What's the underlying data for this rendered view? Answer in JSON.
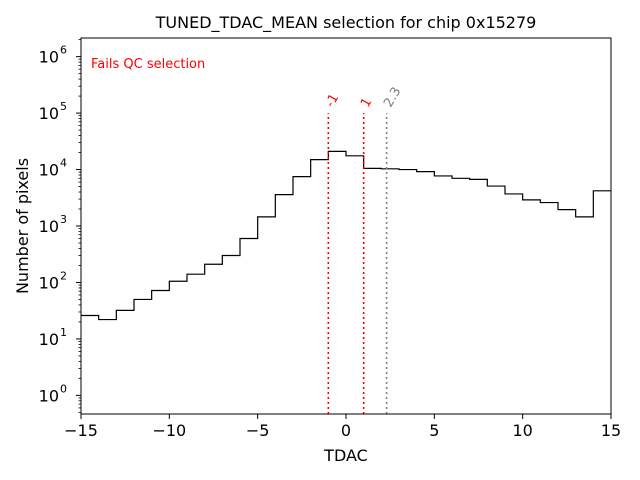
{
  "chart_data": {
    "type": "histogram",
    "title": "TUNED_TDAC_MEAN selection for chip 0x15279",
    "xlabel": "TDAC",
    "ylabel": "Number of pixels",
    "xlim": [
      -15,
      15
    ],
    "ylim_log10": [
      -0.33,
      6.33
    ],
    "yscale": "log",
    "x_ticks": [
      -15,
      -10,
      -5,
      0,
      5,
      10,
      15
    ],
    "x_tick_labels": [
      "−15",
      "−10",
      "−5",
      "0",
      "5",
      "10",
      "15"
    ],
    "y_ticks_exp": [
      0,
      1,
      2,
      3,
      4,
      5,
      6
    ],
    "y_tick_base": "10",
    "y_tick_exponents": [
      "0",
      "1",
      "2",
      "3",
      "4",
      "5",
      "6"
    ],
    "bin_edges": [
      -15,
      -14,
      -13,
      -12,
      -11,
      -10,
      -9,
      -8,
      -7,
      -6,
      -5,
      -4,
      -3,
      -2,
      -1,
      0,
      1,
      2,
      3,
      4,
      5,
      6,
      7,
      8,
      9,
      10,
      11,
      12,
      13,
      14,
      15
    ],
    "counts": [
      26,
      22,
      32,
      50,
      72,
      105,
      140,
      210,
      300,
      600,
      1450,
      3600,
      7500,
      15000,
      21000,
      17500,
      10500,
      10300,
      10000,
      9200,
      7700,
      7000,
      6700,
      5100,
      3700,
      2900,
      2600,
      1950,
      1450,
      4200
    ],
    "annotation": {
      "text": "Fails QC selection",
      "color": "#ff0000",
      "position": "top-left"
    },
    "vlines": [
      {
        "x": -1,
        "label": "-1",
        "color": "#ff0000",
        "y_top": 100000
      },
      {
        "x": 1,
        "label": "1",
        "color": "#ff0000",
        "y_top": 100000
      },
      {
        "x": 2.3,
        "label": "2.3",
        "color": "#808080",
        "y_top": 100000
      }
    ]
  }
}
